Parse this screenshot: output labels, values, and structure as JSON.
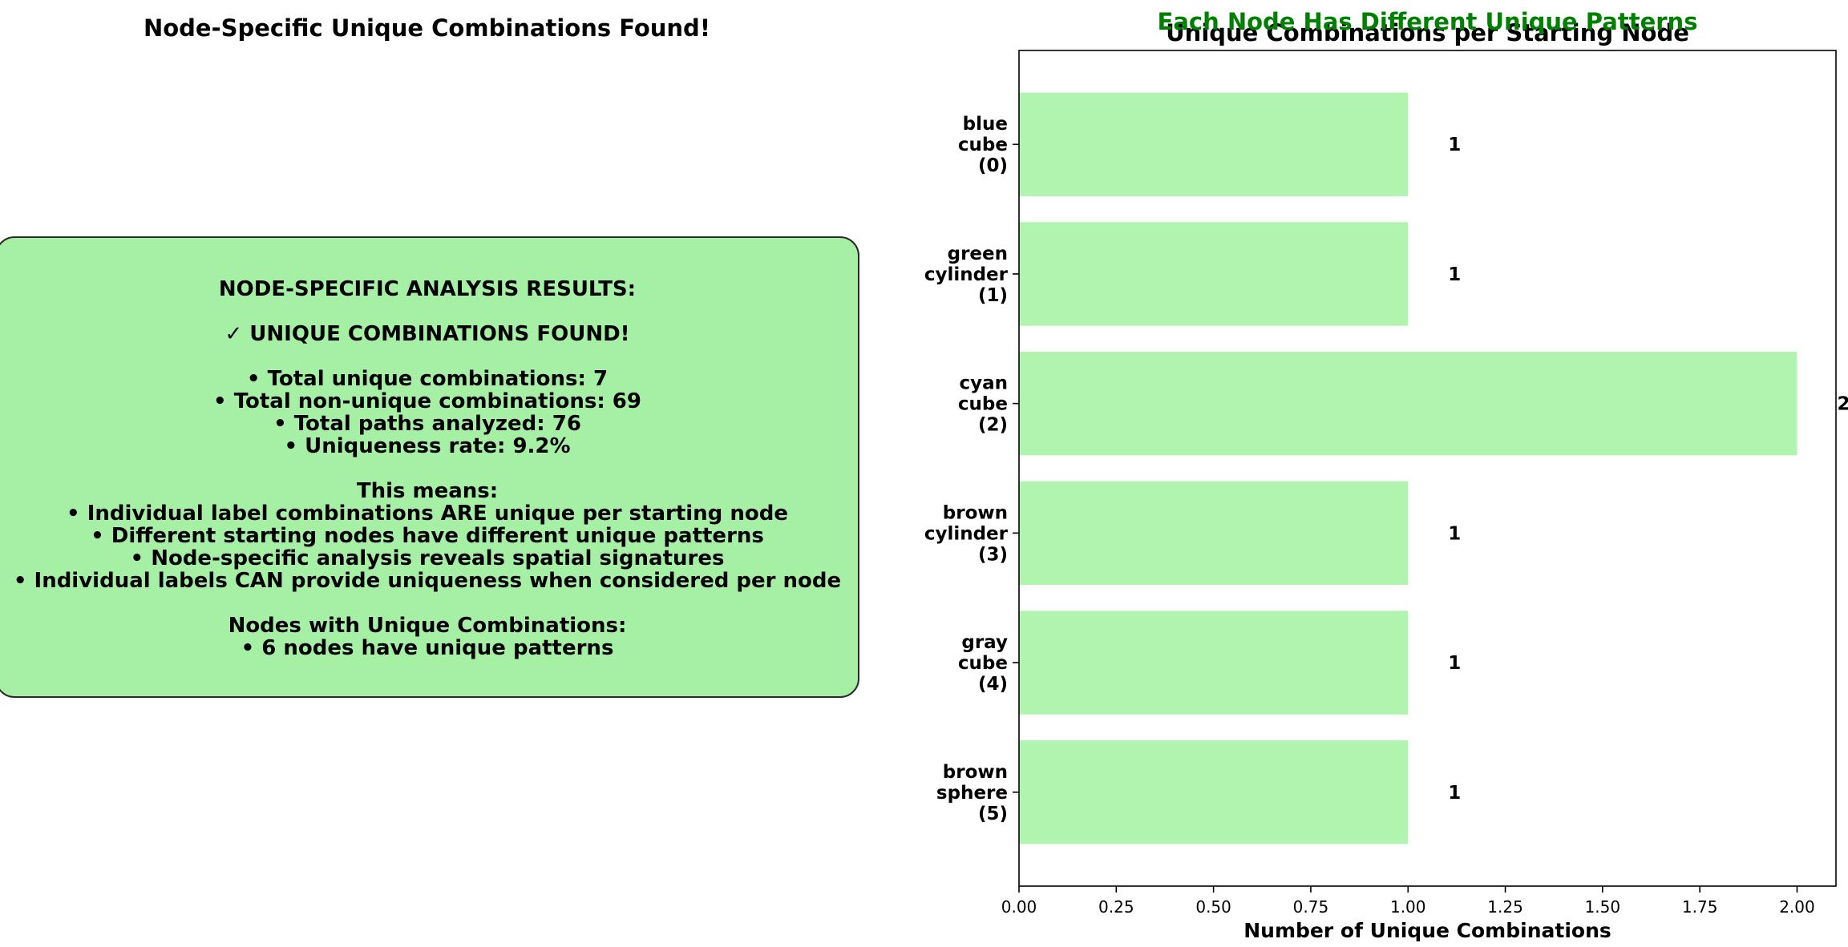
{
  "left_panel": {
    "title": "Node-Specific Unique Combinations Found!",
    "summary_lines": [
      "NODE-SPECIFIC ANALYSIS RESULTS:",
      "",
      "✓ UNIQUE COMBINATIONS FOUND!",
      "",
      "• Total unique combinations: 7",
      "• Total non-unique combinations: 69",
      "• Total paths analyzed: 76",
      "• Uniqueness rate: 9.2%",
      "",
      "This means:",
      "• Individual label combinations ARE unique per starting node",
      "• Different starting nodes have different unique patterns",
      "• Node-specific analysis reveals spatial signatures",
      "• Individual labels CAN provide uniqueness when considered per node",
      "",
      "Nodes with Unique Combinations:",
      "• 6 nodes have unique patterns"
    ],
    "box_color": "#a6f0a6"
  },
  "chart_data": {
    "type": "bar",
    "orientation": "horizontal",
    "title": "Unique Combinations per Starting Node",
    "suptitle": "Each Node Has Different Unique Patterns",
    "suptitle_color": "#008000",
    "xlabel": "Number of Unique Combinations",
    "ylabel": "",
    "categories": [
      [
        "blue",
        "cube",
        "(0)"
      ],
      [
        "green",
        "cylinder",
        "(1)"
      ],
      [
        "cyan",
        "cube",
        "(2)"
      ],
      [
        "brown",
        "cylinder",
        "(3)"
      ],
      [
        "gray",
        "cube",
        "(4)"
      ],
      [
        "brown",
        "sphere",
        "(5)"
      ]
    ],
    "values": [
      1,
      1,
      2,
      1,
      1,
      1
    ],
    "value_labels": [
      "1",
      "1",
      "2",
      "1",
      "1",
      "1"
    ],
    "xlim": [
      0,
      2.1
    ],
    "xticks": [
      "0.00",
      "0.25",
      "0.50",
      "0.75",
      "1.00",
      "1.25",
      "1.50",
      "1.75",
      "2.00"
    ],
    "bar_color": "#b0f4b0",
    "grid": false,
    "legend": "none"
  }
}
